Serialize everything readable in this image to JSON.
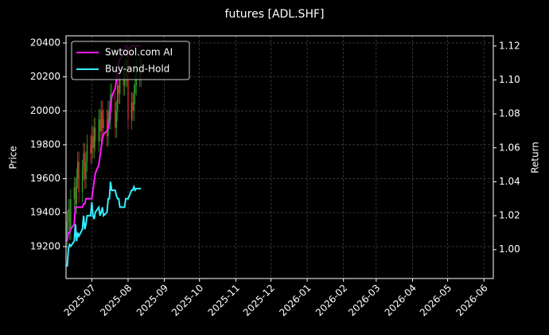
{
  "chart_data": {
    "type": "candlestick",
    "title": "futures [ADL.SHF]",
    "ylabel": "Price",
    "y2label": "Return",
    "x": [
      "2025-06-10",
      "2025-06-11",
      "2025-06-12",
      "2025-06-13",
      "2025-06-16",
      "2025-06-17",
      "2025-06-18",
      "2025-06-19",
      "2025-06-20",
      "2025-06-23",
      "2025-06-24",
      "2025-06-25",
      "2025-06-26",
      "2025-06-27",
      "2025-06-30",
      "2025-07-01",
      "2025-07-02",
      "2025-07-03",
      "2025-07-04",
      "2025-07-07",
      "2025-07-08",
      "2025-07-09",
      "2025-07-10",
      "2025-07-11",
      "2025-07-14",
      "2025-07-15",
      "2025-07-16",
      "2025-07-17",
      "2025-07-18",
      "2025-07-21",
      "2025-07-22",
      "2025-07-23",
      "2025-07-24",
      "2025-07-25",
      "2025-07-28",
      "2025-07-29",
      "2025-07-30",
      "2025-07-31",
      "2025-08-01",
      "2025-08-04",
      "2025-08-05",
      "2025-08-06",
      "2025-08-07",
      "2025-08-08",
      "2025-08-11",
      "2025-08-12"
    ],
    "open": [
      19250,
      19350,
      19420,
      19300,
      19480,
      19550,
      19450,
      19600,
      19700,
      19520,
      19650,
      19750,
      19600,
      19700,
      19800,
      19750,
      19850,
      19780,
      19900,
      19820,
      19950,
      19880,
      20000,
      19900,
      19950,
      19850,
      20000,
      19950,
      20100,
      20050,
      19900,
      20000,
      20150,
      20100,
      20200,
      20150,
      20250,
      20200,
      20300,
      19950,
      20050,
      20000,
      20100,
      20150,
      20250,
      20200
    ],
    "high": [
      19410,
      19480,
      19480,
      19540,
      19610,
      19610,
      19660,
      19760,
      19760,
      19710,
      19810,
      19810,
      19760,
      19860,
      19860,
      19910,
      19910,
      19960,
      19960,
      20010,
      20010,
      20060,
      20060,
      20010,
      20010,
      20060,
      20060,
      20160,
      20160,
      20110,
      20060,
      20210,
      20210,
      20260,
      20260,
      20310,
      20310,
      20360,
      20360,
      20110,
      20110,
      20160,
      20210,
      20310,
      20310,
      20360
    ],
    "low": [
      19190,
      19290,
      19240,
      19240,
      19420,
      19390,
      19390,
      19540,
      19460,
      19460,
      19590,
      19540,
      19540,
      19640,
      19690,
      19690,
      19720,
      19720,
      19760,
      19760,
      19820,
      19820,
      19840,
      19840,
      19790,
      19790,
      19890,
      19890,
      19990,
      19840,
      19840,
      19940,
      20040,
      20040,
      20090,
      20090,
      20140,
      20140,
      19890,
      19890,
      19940,
      19940,
      20040,
      20090,
      20140,
      20140
    ],
    "close": [
      19350,
      19420,
      19300,
      19480,
      19550,
      19450,
      19600,
      19700,
      19520,
      19650,
      19750,
      19600,
      19700,
      19800,
      19750,
      19850,
      19780,
      19900,
      19820,
      19950,
      19880,
      20000,
      19900,
      19950,
      19850,
      20000,
      19950,
      20100,
      20050,
      19900,
      20000,
      20150,
      20100,
      20200,
      20150,
      20250,
      20200,
      20300,
      19950,
      20050,
      20000,
      20100,
      20150,
      20250,
      20200,
      20300
    ],
    "up_color": "#2ca02c",
    "down_color": "#d62728",
    "series": [
      {
        "name": "Swtool.com AI",
        "color": "#ff1aff",
        "axis": "y2",
        "values": [
          1.005,
          1.01,
          1.01,
          1.012,
          1.015,
          1.025,
          1.025,
          1.025,
          1.025,
          1.025,
          1.027,
          1.027,
          1.03,
          1.03,
          1.03,
          1.03,
          1.035,
          1.04,
          1.045,
          1.05,
          1.055,
          1.06,
          1.065,
          1.068,
          1.07,
          1.072,
          1.075,
          1.085,
          1.09,
          1.095,
          1.1,
          1.105,
          1.11,
          1.112,
          1.115,
          1.118,
          1.12,
          1.12,
          1.118,
          1.12,
          1.12,
          1.12,
          1.12,
          1.12,
          1.12,
          1.12
        ]
      },
      {
        "name": "Buy-and-Hold",
        "color": "#33eeff",
        "axis": "y2",
        "values": [
          0.99,
          1.0,
          1.003,
          1.002,
          1.005,
          1.015,
          1.005,
          1.01,
          1.008,
          1.012,
          1.02,
          1.012,
          1.015,
          1.02,
          1.02,
          1.028,
          1.02,
          1.018,
          1.022,
          1.025,
          1.02,
          1.022,
          1.025,
          1.02,
          1.022,
          1.03,
          1.03,
          1.04,
          1.035,
          1.035,
          1.032,
          1.03,
          1.03,
          1.025,
          1.025,
          1.025,
          1.03,
          1.03,
          1.03,
          1.035,
          1.035,
          1.037,
          1.035,
          1.036,
          1.036,
          1.036
        ]
      }
    ],
    "xlim": [
      "2025-06-09",
      "2026-06-09"
    ],
    "xticks": [
      "2025-07",
      "2025-08",
      "2025-09",
      "2025-10",
      "2025-11",
      "2025-12",
      "2026-01",
      "2026-02",
      "2026-03",
      "2026-04",
      "2026-05",
      "2026-06"
    ],
    "ylim": [
      19012,
      20442
    ],
    "yticks": [
      19200,
      19400,
      19600,
      19800,
      20000,
      20200,
      20400
    ],
    "y2lim": [
      0.983,
      1.126
    ],
    "y2ticks": [
      {
        "value": 1.0,
        "label": "1.00"
      },
      {
        "value": 1.02,
        "label": "1.02"
      },
      {
        "value": 1.04,
        "label": "1.04"
      },
      {
        "value": 1.06,
        "label": "1.06"
      },
      {
        "value": 1.08,
        "label": "1.08"
      },
      {
        "value": 1.1,
        "label": "1.10"
      },
      {
        "value": 1.12,
        "label": "1.12"
      }
    ],
    "grid": true,
    "legend": "upper left"
  }
}
